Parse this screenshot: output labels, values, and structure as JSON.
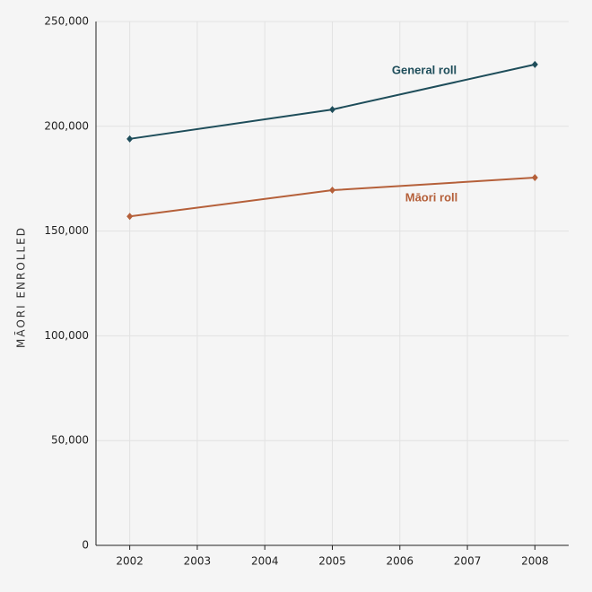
{
  "chart_data": {
    "type": "line",
    "y_label": "MĀORI ENROLLED",
    "x": [
      2002,
      2005,
      2008
    ],
    "series": [
      {
        "name": "General roll",
        "color": "#1e4d5a",
        "values": [
          194000,
          208000,
          229500
        ]
      },
      {
        "name": "Māori roll",
        "color": "#b5603a",
        "values": [
          157000,
          169500,
          175500
        ]
      }
    ],
    "xlim": [
      2001.5,
      2008.5
    ],
    "xticks": [
      2002,
      2003,
      2004,
      2005,
      2006,
      2007,
      2008
    ],
    "ylim": [
      0,
      250000
    ],
    "yticks": [
      0,
      {
        "value": 50000,
        "label": "50,000"
      },
      {
        "value": 100000,
        "label": "100,000"
      },
      {
        "value": 150000,
        "label": "150,000"
      },
      {
        "value": 200000,
        "label": "200,000"
      },
      {
        "value": 250000,
        "label": "250,000"
      }
    ],
    "grid": true
  }
}
